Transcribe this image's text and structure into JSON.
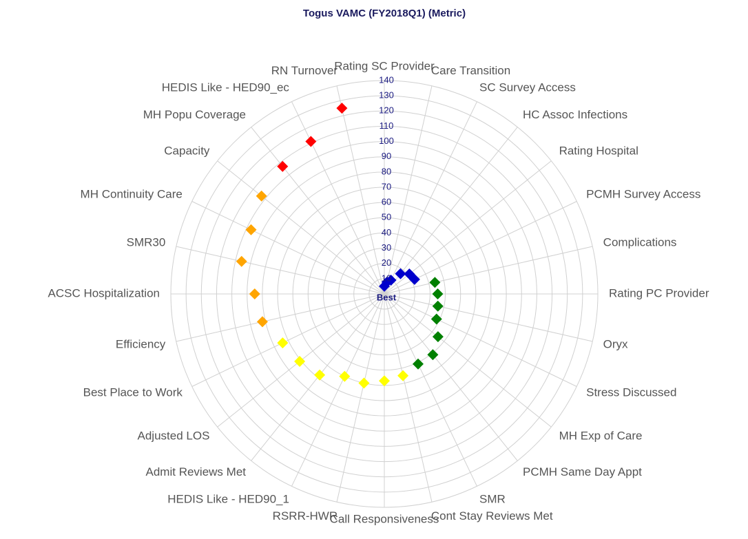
{
  "chart_data": {
    "type": "polar",
    "title": "Togus VAMC (FY2018Q1) (Metric)",
    "categories": [
      "Rating SC Provider",
      "Care Transition",
      "SC Survey Access",
      "HC Assoc Infections",
      "Rating Hospital",
      "PCMH Survey Access",
      "Complications",
      "Rating PC Provider",
      "Oryx",
      "Stress Discussed",
      "MH Exp of Care",
      "PCMH Same Day Appt",
      "SMR",
      "Cont Stay Reviews Met",
      "Call Responsiveness",
      "RSRR-HWR",
      "HEDIS Like - HED90_1",
      "Admit Reviews Met",
      "Adjusted LOS",
      "Best Place to Work",
      "Efficiency",
      "ACSC Hospitalization",
      "SMR30",
      "MH Continuity Care",
      "Capacity",
      "MH Popu Coverage",
      "HEDIS Like - HED90_ec",
      "RN Turnover"
    ],
    "values": [
      5,
      8,
      10,
      17,
      21,
      22,
      34,
      35,
      36,
      38,
      45,
      51,
      51,
      55,
      57,
      60,
      60,
      68,
      71,
      74,
      82,
      85,
      96,
      97,
      103,
      107,
      111,
      125
    ],
    "colors": [
      "#0000cc",
      "#0000cc",
      "#0000cc",
      "#0000cc",
      "#0000cc",
      "#0000cc",
      "#008000",
      "#008000",
      "#008000",
      "#008000",
      "#008000",
      "#008000",
      "#008000",
      "#ffff00",
      "#ffff00",
      "#ffff00",
      "#ffff00",
      "#ffff00",
      "#ffff00",
      "#ffff00",
      "#ffa500",
      "#ffa500",
      "#ffa500",
      "#ffa500",
      "#ffa500",
      "#ff0000",
      "#ff0000",
      "#ff0000"
    ],
    "ylim": [
      0,
      140
    ],
    "yticks": [
      {
        "value": 0,
        "label": "Best"
      },
      10,
      20,
      30,
      40,
      50,
      60,
      70,
      80,
      90,
      100,
      110,
      120,
      130,
      140
    ],
    "grid": true
  }
}
